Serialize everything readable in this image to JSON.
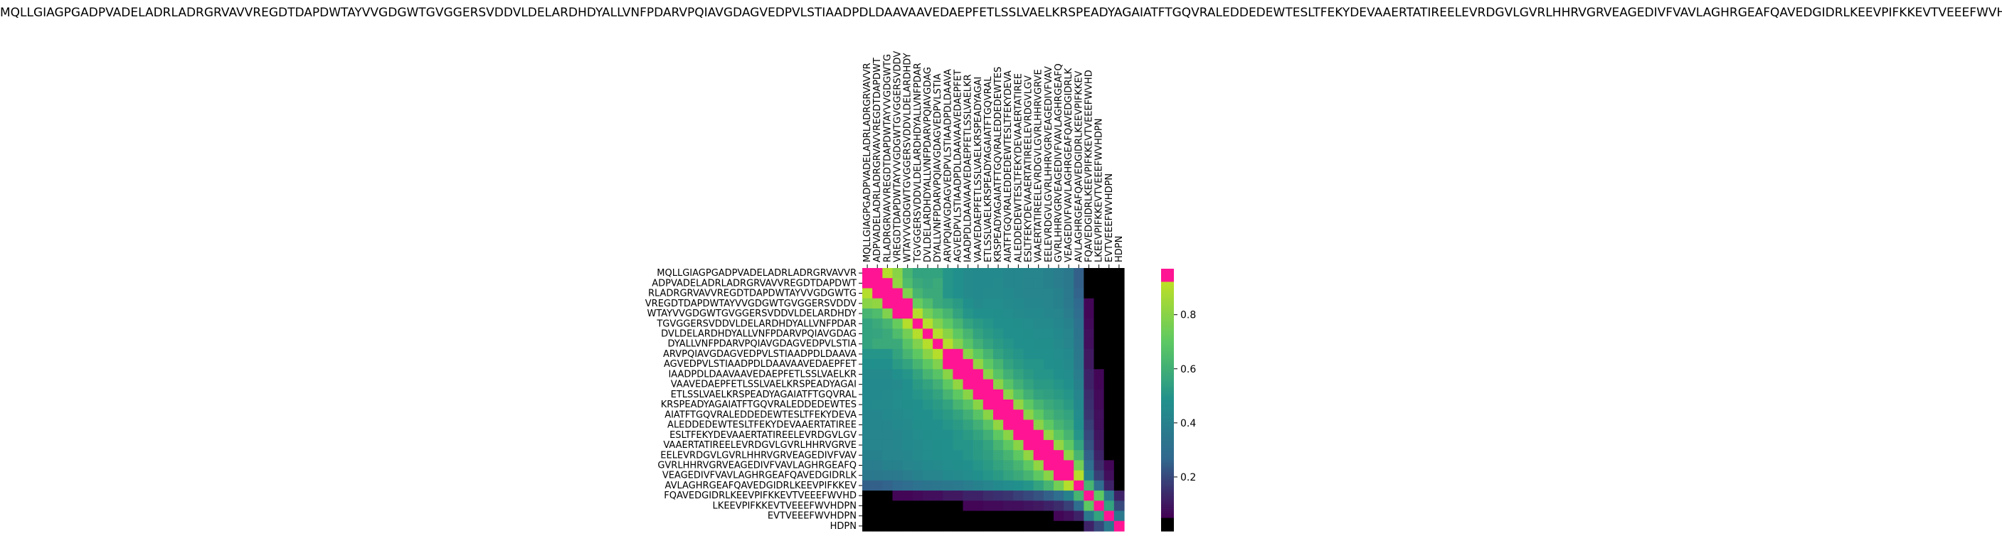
{
  "title": "MQLLGIAGPGADPVADELADRLADRGRVAVVREGDTDAPDWTAYVVGDGWTGVGGERSVDDVLDELARDHDYALLVNFPDARVPQIAVGDAGVEDPVLSTIAADPDLDAAVAAVEDAEPFETLSSLVAELKRSPEADYAGAIATFTGQVRALEDDEDEWTESLTFEKYDEVAAERTATIREELEVRDGVLGVRLHHRVGRVEAGEDIVFVAVLAGHRGEAFQAVEDGIDRLKEEVPIFKKEVTVEEEFWVHDPN",
  "chart_data": {
    "type": "heatmap",
    "title": "MQLLGIAGPGADPVADELADRLADRGRVAVVREGDTDAPDWTAYVVGDGWTGVGGERSVDDVLDELARDHDYALLVNFPDARVPQIAVGDAGVEDPVLSTIAADPDLDAAVAAVEDAEPFETLSSLVAELKRSPEADYAGAIATFTGQVRALEDDEDEWTESLTFEKYDEVAAERTATIREELEVRDGVLGVRLHHRVGRVEAGEDIVFVAVLAGHRGEAFQAVEDGIDRLKEEVPIFKKEVTVEEEFWVHDPN",
    "xlabel": "",
    "ylabel": "",
    "x_tick_labels": [
      "MQLLGIAGPGADPVADELADRLADRGRVAVVR",
      "ADPVADELADRLADRGRVAVVREGDTDAPDWT",
      "RLADRGRVAVVREGDTDAPDWTAYVVGDGWTG",
      "VREGDTDAPDWTAYVVGDGWTGVGGERSVDDV",
      "WTAYVVGDGWTGVGGERSVDDVLDELARDHDY",
      "TGVGGERSVDDVLDELARDHDYALLVNFPDAR",
      "DVLDELARDHDYALLVNFPDARVPQIAVGDAG",
      "DYALLVNFPDARVPQIAVGDAGVEDPVLSTIA",
      "ARVPQIAVGDAGVEDPVLSTIAADPDLDAAVA",
      "AGVEDPVLSTIAADPDLDAAVAAVEDAEPFET",
      "IAADPDLDAAVAAVEDAEPFETLSSLVAELKR",
      "VAAVEDAEPFETLSSLVAELKRSPEADYAGAI",
      "ETLSSLVAELKRSPEADYAGAIATFTGQVRAL",
      "KRSPEADYAGAIATFTGQVRALEDDEDEWTES",
      "AIATFTGQVRALEDDEDEWTESLTFEKYDEVA",
      "ALEDDEDEWTESLTFEKYDEVAAERTATIREE",
      "ESLTFEKYDEVAAERTATIREELEVRDGVLGV",
      "VAAERTATIREELEVRDGVLGVRLHHRVGRVE",
      "EELEVRDGVLGVRLHHRVGRVEAGEDIVFVAV",
      "GVRLHHRVGRVEAGEDIVFVAVLAGHRGEAFQ",
      "VEAGEDIVFVAVLAGHRGEAFQAVEDGIDRLK",
      "AVLAGHRGEAFQAVEDGIDRLKEEVPIFKKEV",
      "FQAVEDGIDRLKEEVPIFKKEVTVEEEFWVHD",
      "LKEEVPIFKKEVTVEEEFWVHDPN",
      "EVTVEEEFWVHDPN",
      "HDPN"
    ],
    "y_tick_labels": [
      "MQLLGIAGPGADPVADELADRLADRGRVAVVR",
      "ADPVADELADRLADRGRVAVVREGDTDAPDWT",
      "RLADRGRVAVVREGDTDAPDWTAYVVGDGWTG",
      "VREGDTDAPDWTAYVVGDGWTGVGGERSVDDV",
      "WTAYVVGDGWTGVGGERSVDDVLDELARDHDY",
      "TGVGGERSVDDVLDELARDHDYALLVNFPDAR",
      "DVLDELARDHDYALLVNFPDARVPQIAVGDAG",
      "DYALLVNFPDARVPQIAVGDAGVEDPVLSTIA",
      "ARVPQIAVGDAGVEDPVLSTIAADPDLDAAVA",
      "AGVEDPVLSTIAADPDLDAAVAAVEDAEPFET",
      "IAADPDLDAAVAAVEDAEPFETLSSLVAELKR",
      "VAAVEDAEPFETLSSLVAELKRSPEADYAGAI",
      "ETLSSLVAELKRSPEADYAGAIATFTGQVRAL",
      "KRSPEADYAGAIATFTGQVRALEDDEDEWTES",
      "AIATFTGQVRALEDDEDEWTESLTFEKYDEVA",
      "ALEDDEDEWTESLTFEKYDEVAAERTATIREE",
      "ESLTFEKYDEVAAERTATIREELEVRDGVLGV",
      "VAAERTATIREELEVRDGVLGVRLHHRVGRVE",
      "EELEVRDGVLGVRLHHRVGRVEAGEDIVFVAV",
      "GVRLHHRVGRVEAGEDIVFVAVLAGHRGEAFQ",
      "VEAGEDIVFVAVLAGHRGEAFQAVEDGIDRLK",
      "AVLAGHRGEAFQAVEDGIDRLKEEVPIFKKEV",
      "FQAVEDGIDRLKEEVPIFKKEVTVEEEFWVHD",
      "LKEEVPIFKKEVTVEEEFWVHDPN",
      "EVTVEEEFWVHDPN",
      "HDPN"
    ],
    "x_tick_labels_position": "top",
    "values": [
      [
        0.98,
        0.97,
        0.9,
        0.8,
        0.62,
        0.55,
        0.55,
        0.55,
        0.5,
        0.48,
        0.45,
        0.44,
        0.44,
        0.44,
        0.43,
        0.43,
        0.42,
        0.42,
        0.4,
        0.38,
        0.35,
        0.25,
        0.05,
        0.03,
        0.03,
        0.03
      ],
      [
        0.97,
        0.98,
        0.93,
        0.82,
        0.65,
        0.58,
        0.56,
        0.58,
        0.5,
        0.48,
        0.45,
        0.44,
        0.44,
        0.45,
        0.43,
        0.43,
        0.42,
        0.42,
        0.4,
        0.38,
        0.35,
        0.25,
        0.05,
        0.03,
        0.03,
        0.03
      ],
      [
        0.9,
        0.93,
        0.98,
        0.94,
        0.78,
        0.62,
        0.58,
        0.58,
        0.5,
        0.48,
        0.45,
        0.44,
        0.45,
        0.45,
        0.44,
        0.43,
        0.42,
        0.42,
        0.42,
        0.4,
        0.36,
        0.26,
        0.05,
        0.03,
        0.03,
        0.03
      ],
      [
        0.8,
        0.82,
        0.94,
        0.98,
        0.93,
        0.72,
        0.65,
        0.58,
        0.55,
        0.52,
        0.48,
        0.45,
        0.46,
        0.46,
        0.45,
        0.44,
        0.43,
        0.43,
        0.42,
        0.4,
        0.36,
        0.28,
        0.06,
        0.03,
        0.03,
        0.03
      ],
      [
        0.62,
        0.65,
        0.78,
        0.93,
        0.98,
        0.9,
        0.75,
        0.68,
        0.62,
        0.55,
        0.5,
        0.48,
        0.48,
        0.47,
        0.46,
        0.45,
        0.44,
        0.44,
        0.43,
        0.42,
        0.38,
        0.3,
        0.06,
        0.04,
        0.03,
        0.03
      ],
      [
        0.55,
        0.58,
        0.62,
        0.72,
        0.9,
        0.98,
        0.9,
        0.78,
        0.7,
        0.62,
        0.55,
        0.52,
        0.5,
        0.48,
        0.48,
        0.47,
        0.46,
        0.45,
        0.45,
        0.43,
        0.4,
        0.32,
        0.07,
        0.04,
        0.03,
        0.03
      ],
      [
        0.55,
        0.56,
        0.58,
        0.65,
        0.75,
        0.9,
        0.98,
        0.9,
        0.8,
        0.7,
        0.62,
        0.55,
        0.52,
        0.5,
        0.48,
        0.48,
        0.47,
        0.46,
        0.46,
        0.44,
        0.42,
        0.33,
        0.08,
        0.04,
        0.03,
        0.03
      ],
      [
        0.55,
        0.58,
        0.58,
        0.58,
        0.68,
        0.78,
        0.9,
        0.98,
        0.9,
        0.78,
        0.68,
        0.6,
        0.55,
        0.52,
        0.5,
        0.48,
        0.48,
        0.47,
        0.47,
        0.45,
        0.42,
        0.34,
        0.08,
        0.05,
        0.03,
        0.03
      ],
      [
        0.5,
        0.5,
        0.5,
        0.55,
        0.62,
        0.7,
        0.8,
        0.9,
        0.98,
        0.93,
        0.8,
        0.7,
        0.62,
        0.55,
        0.52,
        0.5,
        0.48,
        0.48,
        0.48,
        0.46,
        0.44,
        0.35,
        0.1,
        0.05,
        0.03,
        0.03
      ],
      [
        0.48,
        0.48,
        0.48,
        0.52,
        0.55,
        0.62,
        0.7,
        0.78,
        0.93,
        0.98,
        0.94,
        0.82,
        0.7,
        0.62,
        0.55,
        0.52,
        0.5,
        0.5,
        0.48,
        0.47,
        0.45,
        0.36,
        0.1,
        0.05,
        0.03,
        0.03
      ],
      [
        0.45,
        0.45,
        0.45,
        0.48,
        0.5,
        0.55,
        0.62,
        0.68,
        0.8,
        0.94,
        0.98,
        0.94,
        0.8,
        0.68,
        0.6,
        0.55,
        0.52,
        0.5,
        0.5,
        0.48,
        0.46,
        0.38,
        0.12,
        0.06,
        0.03,
        0.03
      ],
      [
        0.44,
        0.44,
        0.44,
        0.45,
        0.48,
        0.52,
        0.55,
        0.6,
        0.7,
        0.82,
        0.94,
        0.98,
        0.93,
        0.8,
        0.68,
        0.6,
        0.55,
        0.52,
        0.52,
        0.5,
        0.48,
        0.4,
        0.12,
        0.06,
        0.03,
        0.03
      ],
      [
        0.44,
        0.44,
        0.45,
        0.46,
        0.48,
        0.5,
        0.52,
        0.55,
        0.62,
        0.7,
        0.8,
        0.93,
        0.98,
        0.93,
        0.8,
        0.68,
        0.6,
        0.55,
        0.54,
        0.52,
        0.5,
        0.42,
        0.14,
        0.07,
        0.04,
        0.03
      ],
      [
        0.44,
        0.45,
        0.45,
        0.46,
        0.47,
        0.48,
        0.5,
        0.52,
        0.55,
        0.62,
        0.68,
        0.8,
        0.93,
        0.98,
        0.94,
        0.82,
        0.7,
        0.62,
        0.58,
        0.55,
        0.52,
        0.44,
        0.15,
        0.07,
        0.04,
        0.03
      ],
      [
        0.43,
        0.43,
        0.44,
        0.45,
        0.46,
        0.48,
        0.48,
        0.5,
        0.52,
        0.55,
        0.6,
        0.68,
        0.8,
        0.94,
        0.98,
        0.94,
        0.8,
        0.7,
        0.62,
        0.58,
        0.55,
        0.46,
        0.16,
        0.08,
        0.04,
        0.03
      ],
      [
        0.43,
        0.43,
        0.43,
        0.44,
        0.45,
        0.47,
        0.48,
        0.48,
        0.5,
        0.52,
        0.55,
        0.6,
        0.68,
        0.82,
        0.94,
        0.98,
        0.93,
        0.8,
        0.7,
        0.62,
        0.58,
        0.48,
        0.18,
        0.08,
        0.04,
        0.03
      ],
      [
        0.42,
        0.42,
        0.42,
        0.43,
        0.44,
        0.46,
        0.47,
        0.48,
        0.48,
        0.5,
        0.52,
        0.55,
        0.6,
        0.7,
        0.8,
        0.93,
        0.98,
        0.94,
        0.82,
        0.7,
        0.62,
        0.5,
        0.2,
        0.09,
        0.05,
        0.03
      ],
      [
        0.42,
        0.42,
        0.42,
        0.43,
        0.44,
        0.45,
        0.46,
        0.47,
        0.48,
        0.5,
        0.5,
        0.52,
        0.55,
        0.62,
        0.7,
        0.8,
        0.94,
        0.98,
        0.94,
        0.82,
        0.7,
        0.55,
        0.22,
        0.1,
        0.05,
        0.03
      ],
      [
        0.4,
        0.4,
        0.42,
        0.42,
        0.43,
        0.45,
        0.46,
        0.47,
        0.48,
        0.48,
        0.5,
        0.52,
        0.54,
        0.58,
        0.62,
        0.7,
        0.82,
        0.94,
        0.98,
        0.94,
        0.8,
        0.62,
        0.25,
        0.12,
        0.05,
        0.03
      ],
      [
        0.38,
        0.38,
        0.4,
        0.4,
        0.42,
        0.43,
        0.44,
        0.45,
        0.46,
        0.47,
        0.48,
        0.5,
        0.52,
        0.55,
        0.58,
        0.62,
        0.7,
        0.82,
        0.94,
        0.98,
        0.93,
        0.75,
        0.3,
        0.14,
        0.06,
        0.03
      ],
      [
        0.35,
        0.35,
        0.36,
        0.36,
        0.38,
        0.4,
        0.42,
        0.42,
        0.44,
        0.45,
        0.46,
        0.48,
        0.5,
        0.52,
        0.55,
        0.58,
        0.62,
        0.7,
        0.8,
        0.93,
        0.98,
        0.9,
        0.4,
        0.18,
        0.08,
        0.04
      ],
      [
        0.25,
        0.25,
        0.26,
        0.28,
        0.3,
        0.32,
        0.33,
        0.34,
        0.35,
        0.36,
        0.38,
        0.4,
        0.42,
        0.44,
        0.46,
        0.48,
        0.5,
        0.55,
        0.62,
        0.75,
        0.9,
        0.98,
        0.62,
        0.3,
        0.12,
        0.05
      ],
      [
        0.05,
        0.05,
        0.05,
        0.06,
        0.06,
        0.07,
        0.08,
        0.08,
        0.1,
        0.1,
        0.12,
        0.12,
        0.14,
        0.15,
        0.16,
        0.18,
        0.2,
        0.22,
        0.25,
        0.3,
        0.4,
        0.62,
        0.98,
        0.7,
        0.35,
        0.12
      ],
      [
        0.03,
        0.03,
        0.03,
        0.03,
        0.04,
        0.04,
        0.04,
        0.05,
        0.05,
        0.05,
        0.06,
        0.06,
        0.07,
        0.07,
        0.08,
        0.08,
        0.09,
        0.1,
        0.12,
        0.14,
        0.18,
        0.3,
        0.7,
        0.98,
        0.55,
        0.2
      ],
      [
        0.03,
        0.03,
        0.03,
        0.03,
        0.03,
        0.03,
        0.03,
        0.03,
        0.03,
        0.03,
        0.03,
        0.03,
        0.04,
        0.04,
        0.04,
        0.04,
        0.05,
        0.05,
        0.05,
        0.06,
        0.08,
        0.12,
        0.35,
        0.55,
        0.98,
        0.35
      ],
      [
        0.03,
        0.03,
        0.03,
        0.03,
        0.03,
        0.03,
        0.03,
        0.03,
        0.03,
        0.03,
        0.03,
        0.03,
        0.03,
        0.03,
        0.03,
        0.03,
        0.03,
        0.03,
        0.03,
        0.03,
        0.04,
        0.05,
        0.12,
        0.2,
        0.35,
        0.98
      ]
    ],
    "colorbar": {
      "ticks": [
        0.2,
        0.4,
        0.6,
        0.8
      ],
      "tick_labels": [
        "0.2",
        "0.4",
        "0.6",
        "0.8"
      ],
      "range": [
        0.0,
        0.97
      ],
      "colors": {
        "floor": "#000000",
        "low": "#440154",
        "mid_low": "#31688e",
        "mid": "#21918c",
        "mid_high": "#5ec962",
        "high": "#bddf26",
        "ceiling": "#ff1493"
      },
      "floor_below": 0.05,
      "ceiling_above": 0.92
    },
    "grid": false,
    "legend": "right"
  }
}
